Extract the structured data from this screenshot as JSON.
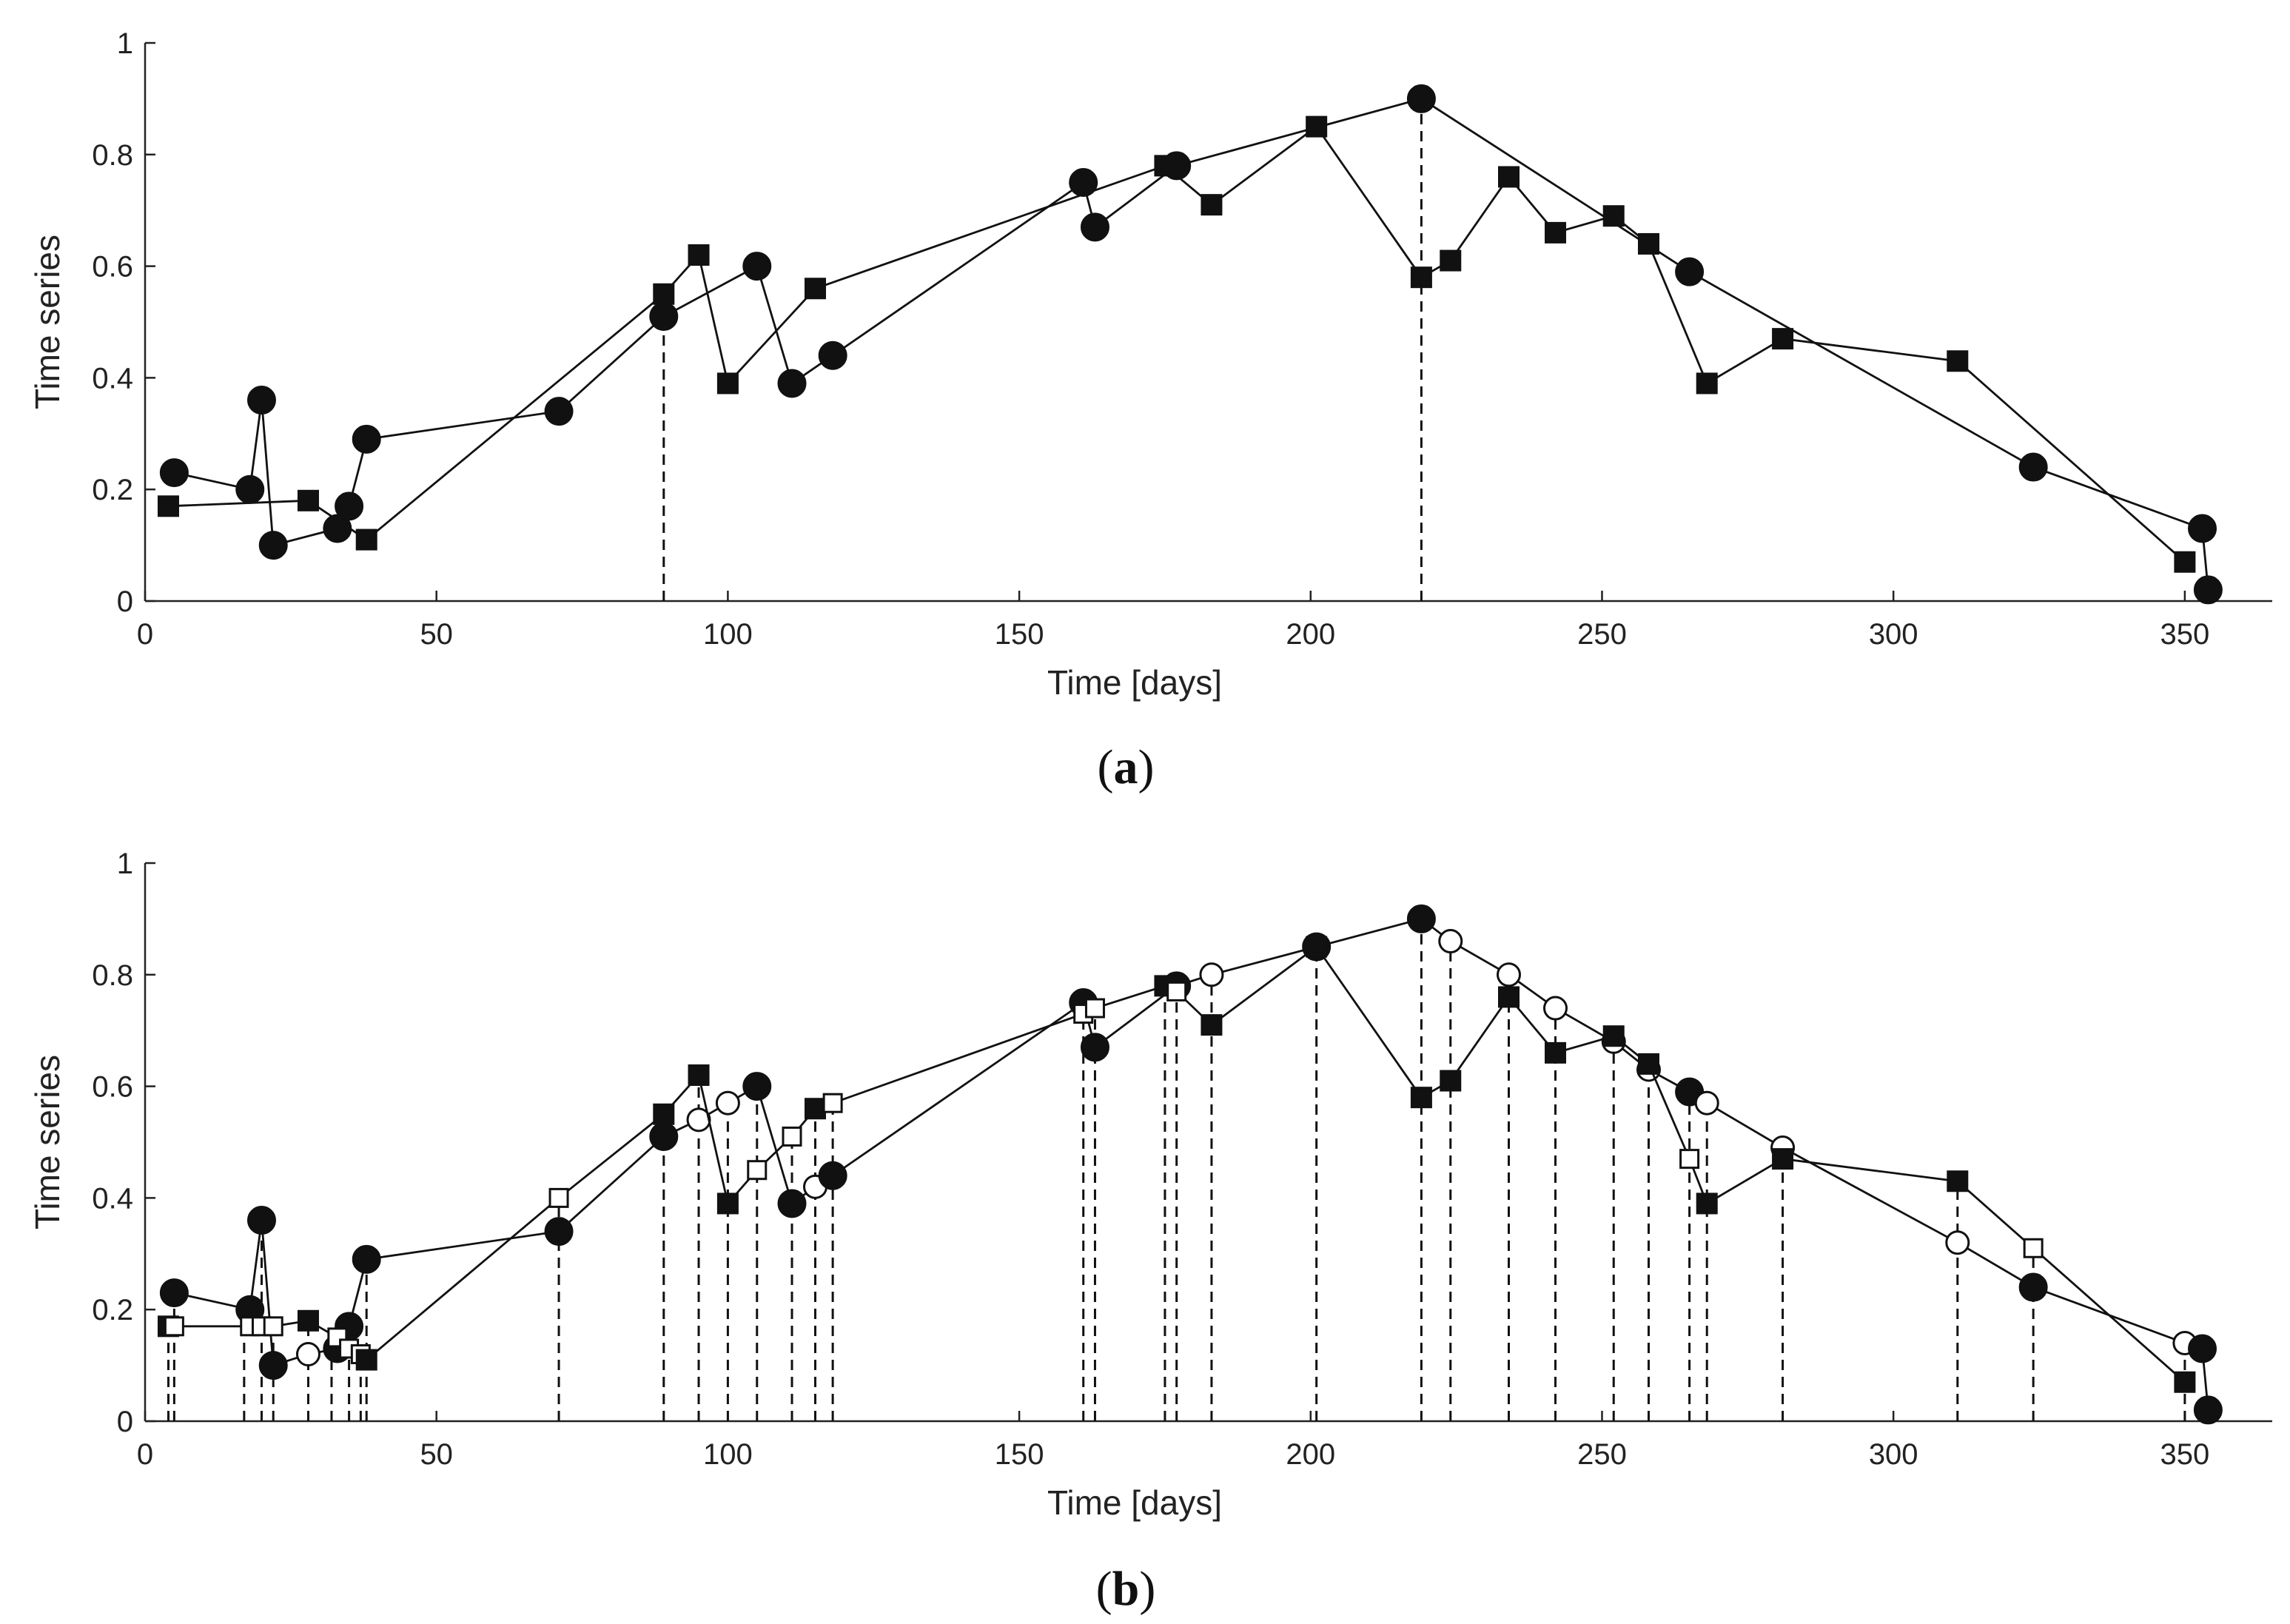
{
  "chart_data": [
    {
      "type": "line",
      "panel": "a",
      "caption_letter": "a",
      "xlabel": "Time [days]",
      "ylabel": "Time series",
      "xlim": [
        0,
        365
      ],
      "ylim": [
        0,
        1
      ],
      "xticks": [
        "0",
        "50",
        "100",
        "150",
        "200",
        "250",
        "300",
        "350"
      ],
      "yticks": [
        "0",
        "0.2",
        "0.4",
        "0.6",
        "0.8",
        "1"
      ],
      "series": [
        {
          "name": "circles",
          "marker": "filled-circle",
          "x": [
            5,
            18,
            20,
            22,
            33,
            35,
            38,
            71,
            89,
            105,
            111,
            118,
            161,
            163,
            177,
            219,
            265,
            324,
            353,
            354
          ],
          "y": [
            0.23,
            0.2,
            0.36,
            0.1,
            0.13,
            0.17,
            0.29,
            0.34,
            0.51,
            0.6,
            0.39,
            0.44,
            0.75,
            0.67,
            0.78,
            0.9,
            0.59,
            0.24,
            0.13,
            0.02
          ]
        },
        {
          "name": "squares",
          "marker": "filled-square",
          "x": [
            4,
            28,
            38,
            89,
            95,
            100,
            115,
            175,
            183,
            201,
            219,
            224,
            234,
            242,
            252,
            258,
            268,
            281,
            311,
            350
          ],
          "y": [
            0.17,
            0.18,
            0.11,
            0.55,
            0.62,
            0.39,
            0.56,
            0.78,
            0.71,
            0.85,
            0.58,
            0.61,
            0.76,
            0.66,
            0.69,
            0.64,
            0.39,
            0.47,
            0.43,
            0.07
          ]
        }
      ],
      "dashed_verticals": [
        89,
        219
      ]
    },
    {
      "type": "line",
      "panel": "b",
      "caption_letter": "b",
      "xlabel": "Time [days]",
      "ylabel": "Time series",
      "xlim": [
        0,
        365
      ],
      "ylim": [
        0,
        1
      ],
      "xticks": [
        "0",
        "50",
        "100",
        "150",
        "200",
        "250",
        "300",
        "350"
      ],
      "yticks": [
        "0",
        "0.2",
        "0.4",
        "0.6",
        "0.8",
        "1"
      ],
      "series": [
        {
          "name": "circles",
          "marker": "filled-circle",
          "x": [
            5,
            18,
            20,
            22,
            28,
            33,
            35,
            38,
            71,
            89,
            95,
            100,
            105,
            111,
            115,
            118,
            161,
            163,
            177,
            183,
            201,
            219,
            224,
            234,
            242,
            252,
            258,
            265,
            268,
            281,
            311,
            324,
            350,
            353,
            354
          ],
          "y": [
            0.23,
            0.2,
            0.36,
            0.1,
            0.12,
            0.13,
            0.17,
            0.29,
            0.34,
            0.51,
            0.54,
            0.57,
            0.6,
            0.39,
            0.42,
            0.44,
            0.75,
            0.67,
            0.78,
            0.8,
            0.85,
            0.9,
            0.86,
            0.8,
            0.74,
            0.68,
            0.63,
            0.59,
            0.57,
            0.49,
            0.32,
            0.24,
            0.14,
            0.13,
            0.02
          ],
          "filled": [
            1,
            1,
            1,
            1,
            0,
            1,
            1,
            1,
            1,
            1,
            0,
            0,
            1,
            1,
            0,
            1,
            1,
            1,
            1,
            0,
            1,
            1,
            0,
            0,
            0,
            0,
            0,
            1,
            0,
            0,
            0,
            1,
            0,
            1,
            1
          ]
        },
        {
          "name": "squares",
          "marker": "filled-square",
          "x": [
            4,
            5,
            18,
            20,
            22,
            28,
            33,
            35,
            37,
            38,
            71,
            89,
            95,
            100,
            105,
            111,
            115,
            118,
            161,
            163,
            175,
            177,
            183,
            201,
            219,
            224,
            234,
            242,
            252,
            258,
            265,
            268,
            281,
            311,
            324,
            350
          ],
          "y": [
            0.17,
            0.17,
            0.17,
            0.17,
            0.17,
            0.18,
            0.15,
            0.13,
            0.12,
            0.11,
            0.4,
            0.55,
            0.62,
            0.39,
            0.45,
            0.51,
            0.56,
            0.57,
            0.73,
            0.74,
            0.78,
            0.77,
            0.71,
            0.85,
            0.58,
            0.61,
            0.76,
            0.66,
            0.69,
            0.64,
            0.47,
            0.39,
            0.47,
            0.43,
            0.31,
            0.07
          ],
          "filled": [
            1,
            0,
            0,
            0,
            0,
            1,
            0,
            0,
            0,
            1,
            0,
            1,
            1,
            1,
            0,
            0,
            1,
            0,
            0,
            0,
            1,
            0,
            1,
            1,
            1,
            1,
            1,
            1,
            1,
            1,
            0,
            1,
            1,
            1,
            0,
            1
          ]
        }
      ],
      "dashed_verticals": [
        4,
        5,
        17,
        20,
        22,
        28,
        32,
        35,
        37,
        38,
        71,
        89,
        95,
        100,
        105,
        111,
        115,
        118,
        161,
        163,
        175,
        177,
        183,
        201,
        219,
        224,
        234,
        242,
        252,
        258,
        265,
        268,
        281,
        311,
        324,
        350,
        354
      ]
    }
  ]
}
